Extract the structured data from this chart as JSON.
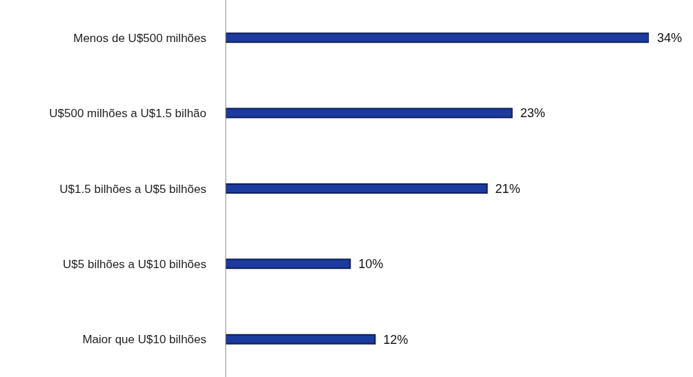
{
  "chart_data": {
    "type": "bar",
    "orientation": "horizontal",
    "categories": [
      "Menos de U$500 milhões",
      "U$500 milhões a U$1.5 bilhão",
      "U$1.5 bilhões a U$5 bilhões",
      "U$5 bilhões a U$10 bilhões",
      "Maior que U$10 bilhões"
    ],
    "values": [
      34,
      23,
      21,
      10,
      12
    ],
    "value_labels": [
      "34%",
      "23%",
      "21%",
      "10%",
      "12%"
    ],
    "color": "#1c3b9e",
    "grid": false,
    "legend": false
  }
}
